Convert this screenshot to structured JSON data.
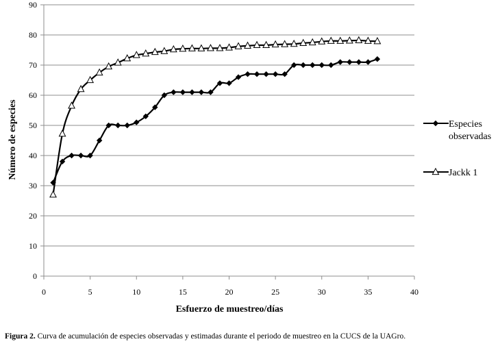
{
  "chart_data": {
    "type": "line",
    "title": "",
    "xlabel": "Esfuerzo de muestreo/días",
    "ylabel": "Número de especies",
    "xlim": [
      0,
      40
    ],
    "ylim": [
      0,
      90
    ],
    "xticks": [
      0,
      5,
      10,
      15,
      20,
      25,
      30,
      35,
      40
    ],
    "yticks": [
      0,
      10,
      20,
      30,
      40,
      50,
      60,
      70,
      80,
      90
    ],
    "grid": "horizontal",
    "legend_position": "right",
    "x": [
      1,
      2,
      3,
      4,
      5,
      6,
      7,
      8,
      9,
      10,
      11,
      12,
      13,
      14,
      15,
      16,
      17,
      18,
      19,
      20,
      21,
      22,
      23,
      24,
      25,
      26,
      27,
      28,
      29,
      30,
      31,
      32,
      33,
      34,
      35,
      36
    ],
    "series": [
      {
        "name": "Especies observadas",
        "legend_lines": [
          "Especies",
          "observadas"
        ],
        "marker": "diamond",
        "color": "#000000",
        "values": [
          31,
          38,
          40,
          40,
          40,
          45,
          50,
          50,
          50,
          51,
          53,
          56,
          60,
          61,
          61,
          61,
          61,
          61,
          64,
          64,
          66,
          67,
          67,
          67,
          67,
          67,
          70,
          70,
          70,
          70,
          70,
          71,
          71,
          71,
          71,
          72
        ]
      },
      {
        "name": "Jackk 1",
        "legend_lines": [
          "Jackk 1"
        ],
        "marker": "triangle",
        "color": "#000000",
        "values": [
          27,
          47.2,
          56.5,
          62,
          65,
          67.5,
          69.5,
          70.8,
          72.2,
          73.3,
          73.8,
          74.3,
          74.6,
          75.2,
          75.4,
          75.5,
          75.5,
          75.6,
          75.6,
          75.8,
          76.2,
          76.4,
          76.6,
          76.6,
          76.8,
          76.9,
          77,
          77.3,
          77.5,
          77.8,
          78,
          78,
          78.1,
          78.2,
          78,
          77.9
        ]
      }
    ]
  },
  "caption": {
    "label": "Figura 2.",
    "text": " Curva de acumulación de especies observadas y estimadas durante el periodo de muestreo en la CUCS de la UAGro."
  }
}
